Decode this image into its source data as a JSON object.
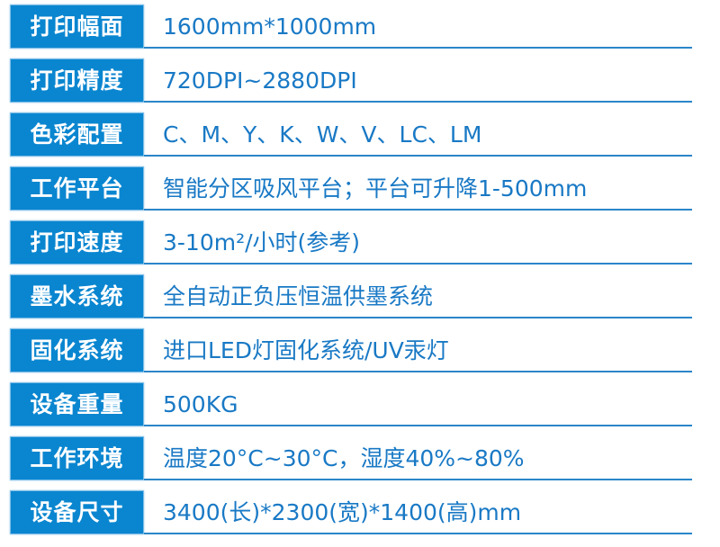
{
  "specs": [
    {
      "label": "打印幅面",
      "value": "1600mm*1000mm"
    },
    {
      "label": "打印精度",
      "value": "720DPI~2880DPI"
    },
    {
      "label": "色彩配置",
      "value": "C、M、Y、K、W、V、LC、LM"
    },
    {
      "label": "工作平台",
      "value": "智能分区吸风平台；平台可升降1-500mm"
    },
    {
      "label": "打印速度",
      "value": "3-10m²/小时(参考)"
    },
    {
      "label": "墨水系统",
      "value": "全自动正负压恒温供墨系统"
    },
    {
      "label": "固化系统",
      "value": "进口LED灯固化系统/UV汞灯"
    },
    {
      "label": "设备重量",
      "value": "500KG"
    },
    {
      "label": "工作环境",
      "value": "温度20°C~30°C，湿度40%~80%"
    },
    {
      "label": "设备尺寸",
      "value": "3400(长)*2300(宽)*1400(高)mm"
    }
  ],
  "colors": {
    "label_bg": "#0a86d0",
    "value_text": "#1979c5"
  }
}
